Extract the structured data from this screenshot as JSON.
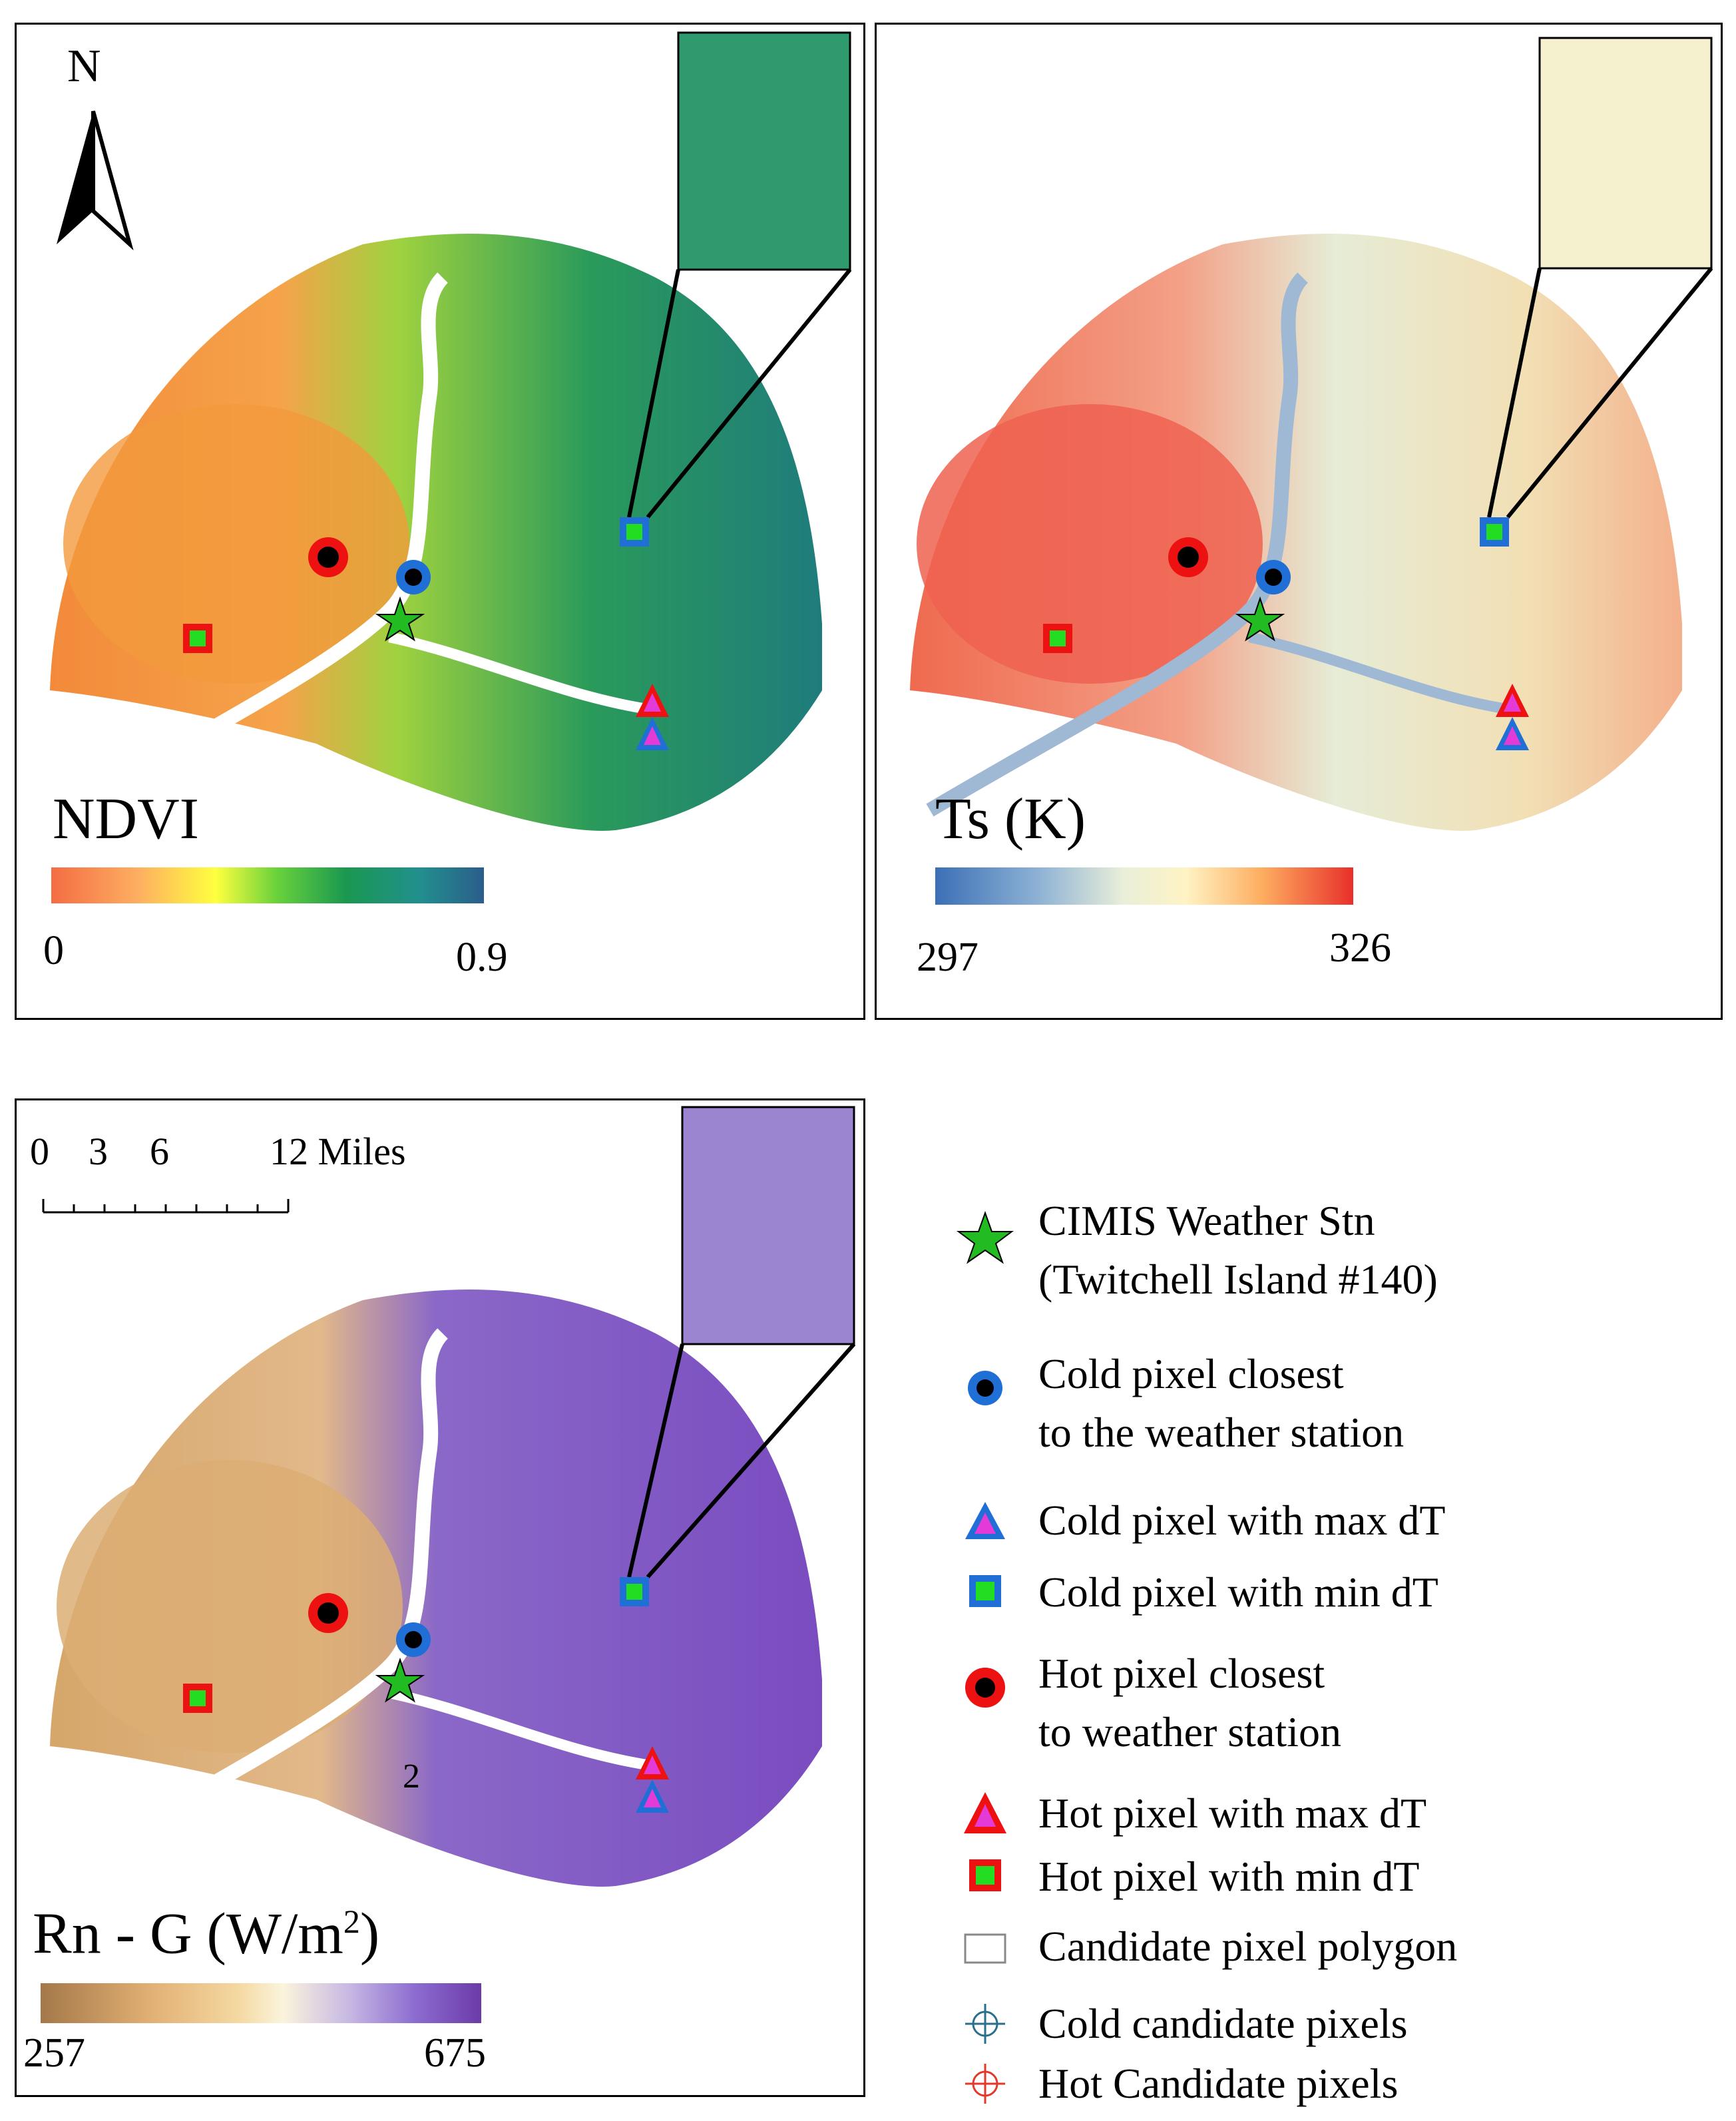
{
  "figure": {
    "north_label": "N",
    "panels": {
      "ndvi": {
        "title": "NDVI",
        "min": "0",
        "max": "0.9",
        "colors": [
          "#f46d43",
          "#fdae61",
          "#fee08b",
          "#ffff3f",
          "#6ad23b",
          "#1a9850",
          "#21908d",
          "#2b5d8c"
        ]
      },
      "ts": {
        "title": "Ts (K)",
        "min": "297",
        "max": "326",
        "colors": [
          "#3b6fb6",
          "#8fb3d5",
          "#e9efd9",
          "#fff3c4",
          "#fdae61",
          "#f46d43",
          "#e8302a"
        ]
      },
      "rng": {
        "title_main": "Rn - G (W/m",
        "title_sup": "2",
        "title_end": ")",
        "min": "257",
        "max": "675",
        "colors": [
          "#a47849",
          "#e2b074",
          "#f4d9a2",
          "#fbf4dc",
          "#c7b8e3",
          "#8c6cd0",
          "#6b3ba8"
        ],
        "scale_labels": [
          "0",
          "3",
          "6",
          "12 Miles"
        ],
        "map_number": "2"
      }
    },
    "legend": {
      "items": [
        {
          "symbol": "star",
          "line1": "CIMIS Weather Stn",
          "line2": "(Twitchell Island #140)"
        },
        {
          "symbol": "cold-circle",
          "line1": "Cold pixel closest",
          "line2": "to the weather station"
        },
        {
          "symbol": "cold-tri",
          "line1": "Cold pixel with max dT",
          "line2": ""
        },
        {
          "symbol": "cold-square",
          "line1": "Cold pixel with min dT",
          "line2": ""
        },
        {
          "symbol": "hot-circle",
          "line1": "Hot pixel closest",
          "line2": "to weather station"
        },
        {
          "symbol": "hot-tri",
          "line1": "Hot pixel with max dT",
          "line2": ""
        },
        {
          "symbol": "hot-square",
          "line1": "Hot pixel with min dT",
          "line2": ""
        },
        {
          "symbol": "polygon",
          "line1": "Candidate pixel polygon",
          "line2": ""
        },
        {
          "symbol": "cold-cross",
          "line1": "Cold candidate pixels",
          "line2": ""
        },
        {
          "symbol": "hot-cross",
          "line1": "Hot Candidate pixels",
          "line2": ""
        }
      ]
    },
    "colors": {
      "cold_blue": "#1f6fd6",
      "hot_red": "#ee1111",
      "magenta": "#e43ad8",
      "green_marker": "#22dd22",
      "cold_cross": "#2a6f8e",
      "hot_cross": "#e23a2a"
    }
  }
}
